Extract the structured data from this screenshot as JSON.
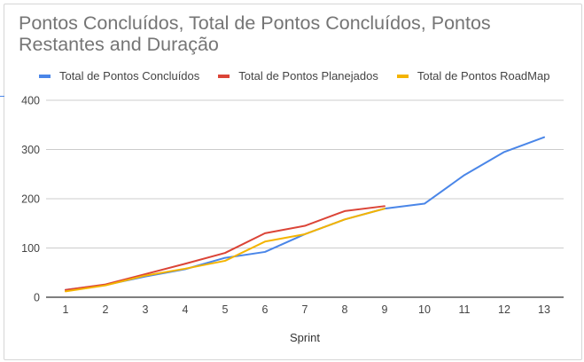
{
  "chart_data": {
    "type": "line",
    "title": "Pontos Concluídos, Total de Pontos Concluídos, Pontos Restantes and Duração",
    "xlabel": "Sprint",
    "ylabel": "",
    "categories": [
      "1",
      "2",
      "3",
      "4",
      "5",
      "6",
      "7",
      "8",
      "9",
      "10",
      "11",
      "12",
      "13"
    ],
    "ylim": [
      0,
      400
    ],
    "yticks": [
      "0",
      "100",
      "200",
      "300",
      "400"
    ],
    "grid": true,
    "legend_position": "top",
    "series": [
      {
        "name": "Total de Pontos Concluídos",
        "color": "#4a86e8",
        "values": [
          15,
          25,
          42,
          57,
          80,
          92,
          128,
          158,
          180,
          190,
          248,
          295,
          325
        ]
      },
      {
        "name": "Total de Pontos Planejados",
        "color": "#db4437",
        "values": [
          15,
          26,
          47,
          68,
          90,
          130,
          145,
          175,
          185,
          null,
          null,
          null,
          null
        ]
      },
      {
        "name": "Total de Pontos RoadMap",
        "color": "#f4b400",
        "values": [
          12,
          24,
          44,
          58,
          74,
          113,
          128,
          158,
          180,
          null,
          null,
          null,
          null
        ]
      }
    ]
  }
}
